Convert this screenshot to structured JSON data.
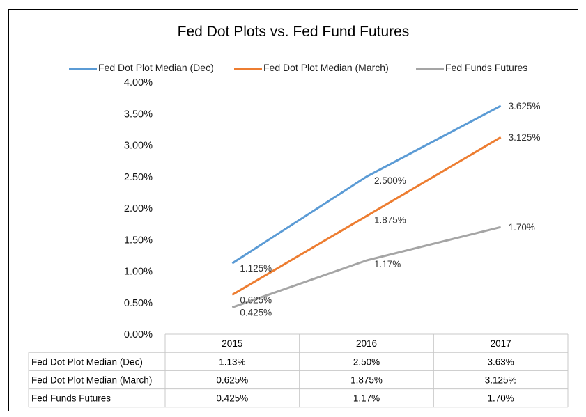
{
  "chart_data": {
    "type": "line",
    "title": "Fed Dot Plots vs. Fed Fund Futures",
    "categories": [
      "2015",
      "2016",
      "2017"
    ],
    "ylim": [
      0,
      4
    ],
    "y_tick_labels": [
      "4.00%",
      "3.50%",
      "3.00%",
      "2.50%",
      "2.00%",
      "1.50%",
      "1.00%",
      "0.50%",
      "0.00%"
    ],
    "legend_position": "top",
    "grid": false,
    "series": [
      {
        "name": "Fed Dot Plot Median (Dec)",
        "color": "#5b9bd5",
        "values": [
          1.125,
          2.5,
          3.625
        ],
        "point_labels": [
          "1.125%",
          "2.500%",
          "3.625%"
        ],
        "table_values": [
          "1.13%",
          "2.50%",
          "3.63%"
        ]
      },
      {
        "name": "Fed Dot Plot Median (March)",
        "color": "#ed7d31",
        "values": [
          0.625,
          1.875,
          3.125
        ],
        "point_labels": [
          "0.625%",
          "1.875%",
          "3.125%"
        ],
        "table_values": [
          "0.625%",
          "1.875%",
          "3.125%"
        ]
      },
      {
        "name": "Fed Funds Futures",
        "color": "#a5a5a5",
        "values": [
          0.425,
          1.17,
          1.7
        ],
        "point_labels": [
          "0.425%",
          "1.17%",
          "1.70%"
        ],
        "table_values": [
          "0.425%",
          "1.17%",
          "1.70%"
        ]
      }
    ]
  }
}
